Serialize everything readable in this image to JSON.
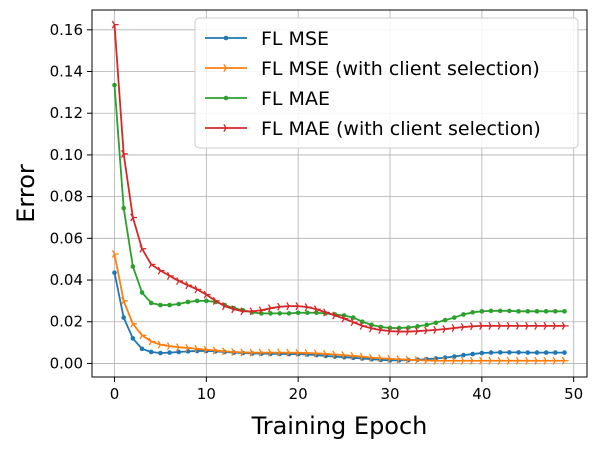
{
  "chart_data": {
    "type": "line",
    "xlabel": "Training Epoch",
    "ylabel": "Error",
    "xlim": [
      -2.45,
      51.45
    ],
    "ylim": [
      -0.0065,
      0.1695
    ],
    "xticks": [
      0,
      10,
      20,
      30,
      40,
      50
    ],
    "xtick_labels": [
      "0",
      "10",
      "20",
      "30",
      "40",
      "50"
    ],
    "yticks": [
      0.0,
      0.02,
      0.04,
      0.06,
      0.08,
      0.1,
      0.12,
      0.14,
      0.16
    ],
    "ytick_labels": [
      "0.00",
      "0.02",
      "0.04",
      "0.06",
      "0.08",
      "0.10",
      "0.12",
      "0.14",
      "0.16"
    ],
    "grid": true,
    "legend_position": "top-right",
    "x": [
      0,
      1,
      2,
      3,
      4,
      5,
      6,
      7,
      8,
      9,
      10,
      11,
      12,
      13,
      14,
      15,
      16,
      17,
      18,
      19,
      20,
      21,
      22,
      23,
      24,
      25,
      26,
      27,
      28,
      29,
      30,
      31,
      32,
      33,
      34,
      35,
      36,
      37,
      38,
      39,
      40,
      41,
      42,
      43,
      44,
      45,
      46,
      47,
      48,
      49
    ],
    "series": [
      {
        "name": "FL MSE",
        "color": "#1f77b4",
        "marker": "circle",
        "values": [
          0.0435,
          0.022,
          0.012,
          0.007,
          0.0055,
          0.005,
          0.0052,
          0.0055,
          0.0058,
          0.006,
          0.006,
          0.0058,
          0.0055,
          0.0052,
          0.005,
          0.0048,
          0.0047,
          0.0046,
          0.0046,
          0.0045,
          0.0045,
          0.0043,
          0.004,
          0.0036,
          0.0033,
          0.003,
          0.0027,
          0.0024,
          0.002,
          0.0017,
          0.0015,
          0.0015,
          0.0016,
          0.0018,
          0.002,
          0.0024,
          0.0028,
          0.0033,
          0.004,
          0.0045,
          0.005,
          0.0052,
          0.0053,
          0.0053,
          0.0053,
          0.0052,
          0.0052,
          0.0052,
          0.0052,
          0.0052
        ]
      },
      {
        "name": "FL MSE (with client selection)",
        "color": "#ff7f0e",
        "marker": "tri-right",
        "values": [
          0.0525,
          0.03,
          0.019,
          0.0135,
          0.0105,
          0.009,
          0.0083,
          0.0078,
          0.0074,
          0.007,
          0.0066,
          0.0062,
          0.0058,
          0.0055,
          0.0053,
          0.0052,
          0.0052,
          0.0052,
          0.0052,
          0.0052,
          0.0051,
          0.005,
          0.0048,
          0.0046,
          0.0043,
          0.004,
          0.0036,
          0.0032,
          0.0028,
          0.0025,
          0.0022,
          0.002,
          0.0018,
          0.0016,
          0.0014,
          0.0013,
          0.0013,
          0.0013,
          0.0013,
          0.0013,
          0.0013,
          0.0013,
          0.0013,
          0.0013,
          0.0013,
          0.0013,
          0.0013,
          0.0013,
          0.0013,
          0.0013
        ]
      },
      {
        "name": "FL MAE",
        "color": "#2ca02c",
        "marker": "circle",
        "values": [
          0.1335,
          0.0745,
          0.0465,
          0.034,
          0.029,
          0.028,
          0.028,
          0.0285,
          0.0295,
          0.03,
          0.03,
          0.0295,
          0.028,
          0.0265,
          0.0255,
          0.0245,
          0.024,
          0.024,
          0.024,
          0.024,
          0.0243,
          0.0243,
          0.0243,
          0.024,
          0.0235,
          0.023,
          0.022,
          0.02,
          0.0185,
          0.0175,
          0.017,
          0.017,
          0.0172,
          0.0178,
          0.0185,
          0.0195,
          0.0208,
          0.022,
          0.0235,
          0.0245,
          0.025,
          0.0252,
          0.0252,
          0.0252,
          0.025,
          0.025,
          0.025,
          0.025,
          0.025,
          0.025
        ]
      },
      {
        "name": "FL MAE (with client selection)",
        "color": "#d62728",
        "marker": "tri-right",
        "values": [
          0.1625,
          0.1005,
          0.07,
          0.055,
          0.0475,
          0.0445,
          0.042,
          0.0395,
          0.0375,
          0.0355,
          0.033,
          0.03,
          0.0275,
          0.026,
          0.025,
          0.025,
          0.0255,
          0.0265,
          0.0272,
          0.0275,
          0.0275,
          0.027,
          0.026,
          0.0245,
          0.023,
          0.0215,
          0.0198,
          0.018,
          0.0168,
          0.016,
          0.0155,
          0.0153,
          0.0153,
          0.0155,
          0.0158,
          0.0161,
          0.0165,
          0.017,
          0.0175,
          0.0178,
          0.018,
          0.018,
          0.018,
          0.018,
          0.018,
          0.018,
          0.018,
          0.018,
          0.018,
          0.018
        ]
      }
    ]
  }
}
